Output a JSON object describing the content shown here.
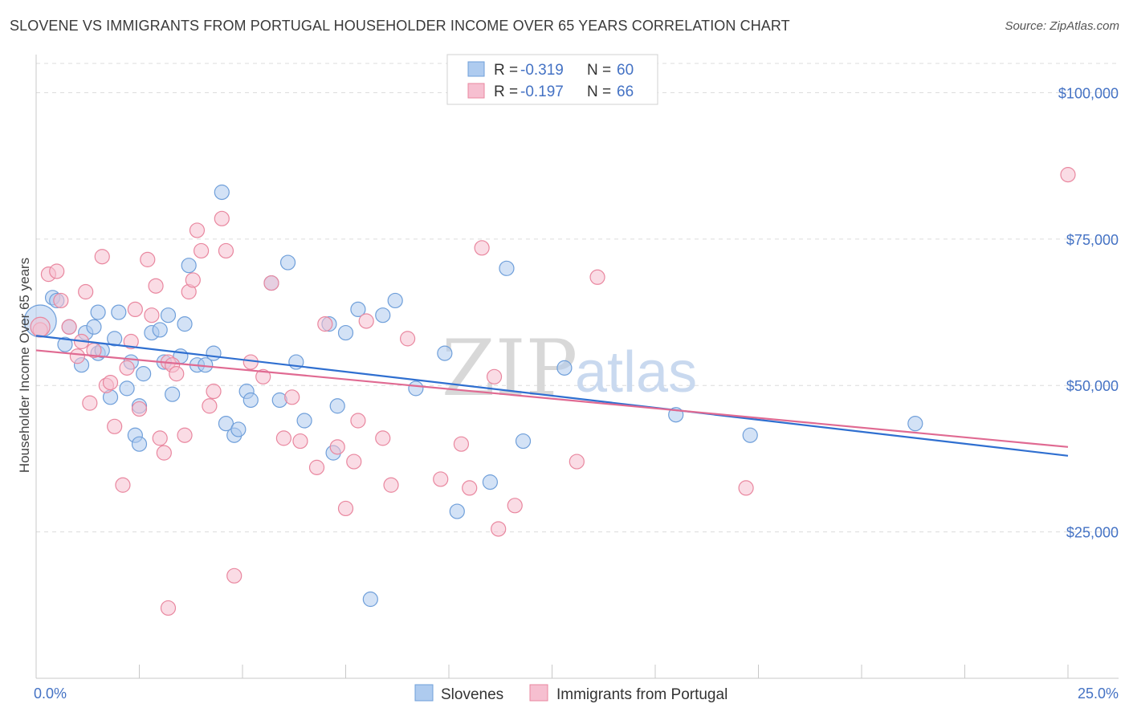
{
  "title": "SLOVENE VS IMMIGRANTS FROM PORTUGAL HOUSEHOLDER INCOME OVER 65 YEARS CORRELATION CHART",
  "source": "Source: ZipAtlas.com",
  "watermark": {
    "zip": "ZIP",
    "atlas": "atlas"
  },
  "legend": {
    "rows": [
      {
        "r_label": "R =",
        "r_value": "-0.319",
        "n_label": "N =",
        "n_value": "60"
      },
      {
        "r_label": "R =",
        "r_value": "-0.197",
        "n_label": "N =",
        "n_value": "66"
      }
    ]
  },
  "colors": {
    "blue_fill": "#aecbef",
    "blue_stroke": "#6f9fda",
    "blue_line": "#2f6fd0",
    "pink_fill": "#f6bfd0",
    "pink_stroke": "#e9879f",
    "pink_line": "#e06a92",
    "tick_text": "#4472c4",
    "grid": "#dcdcdc"
  },
  "chart_data": {
    "type": "scatter",
    "title": "SLOVENE VS IMMIGRANTS FROM PORTUGAL HOUSEHOLDER INCOME OVER 65 YEARS CORRELATION CHART",
    "xlabel": "",
    "ylabel": "Householder Income Over 65 years",
    "xlim": [
      0,
      25
    ],
    "ylim": [
      0,
      105000
    ],
    "x_tick_labels": [
      "0.0%",
      "25.0%"
    ],
    "y_ticks": [
      25000,
      50000,
      75000,
      100000
    ],
    "y_tick_labels": [
      "$25,000",
      "$50,000",
      "$75,000",
      "$100,000"
    ],
    "grid": "horizontal dashed",
    "legend_position": "top-center",
    "series": [
      {
        "name": "Slovenes",
        "color": "#aecbef",
        "trend": {
          "x": [
            0,
            25
          ],
          "y": [
            58500,
            38000
          ]
        },
        "points": [
          [
            0.1,
            61000
          ],
          [
            0.4,
            65000
          ],
          [
            0.5,
            64500
          ],
          [
            0.7,
            57000
          ],
          [
            0.8,
            60000
          ],
          [
            1.1,
            53500
          ],
          [
            1.2,
            59000
          ],
          [
            1.5,
            55500
          ],
          [
            1.6,
            56000
          ],
          [
            1.4,
            60000
          ],
          [
            1.5,
            62500
          ],
          [
            1.8,
            48000
          ],
          [
            1.9,
            58000
          ],
          [
            2.0,
            62500
          ],
          [
            2.2,
            49500
          ],
          [
            2.3,
            54000
          ],
          [
            2.4,
            41500
          ],
          [
            2.5,
            46500
          ],
          [
            2.6,
            52000
          ],
          [
            2.8,
            59000
          ],
          [
            3.0,
            59500
          ],
          [
            3.1,
            54000
          ],
          [
            3.2,
            62000
          ],
          [
            3.3,
            48500
          ],
          [
            3.5,
            55000
          ],
          [
            3.6,
            60500
          ],
          [
            3.7,
            70500
          ],
          [
            3.9,
            53500
          ],
          [
            4.1,
            53500
          ],
          [
            4.3,
            55500
          ],
          [
            4.5,
            83000
          ],
          [
            4.6,
            43500
          ],
          [
            4.8,
            41500
          ],
          [
            4.9,
            42500
          ],
          [
            5.1,
            49000
          ],
          [
            5.2,
            47500
          ],
          [
            5.7,
            67500
          ],
          [
            5.9,
            47500
          ],
          [
            6.1,
            71000
          ],
          [
            6.3,
            54000
          ],
          [
            6.5,
            44000
          ],
          [
            7.1,
            60500
          ],
          [
            7.2,
            38500
          ],
          [
            7.3,
            46500
          ],
          [
            7.5,
            59000
          ],
          [
            7.8,
            63000
          ],
          [
            8.1,
            13500
          ],
          [
            8.4,
            62000
          ],
          [
            8.7,
            64500
          ],
          [
            9.2,
            49500
          ],
          [
            9.9,
            55500
          ],
          [
            10.2,
            28500
          ],
          [
            11.0,
            33500
          ],
          [
            11.4,
            70000
          ],
          [
            11.8,
            40500
          ],
          [
            12.8,
            53000
          ],
          [
            15.5,
            45000
          ],
          [
            17.3,
            41500
          ],
          [
            21.3,
            43500
          ],
          [
            2.5,
            40000
          ]
        ]
      },
      {
        "name": "Immigrants from Portugal",
        "color": "#f6bfd0",
        "trend": {
          "x": [
            0,
            25
          ],
          "y": [
            56000,
            39500
          ]
        },
        "points": [
          [
            0.1,
            59500
          ],
          [
            0.3,
            69000
          ],
          [
            0.5,
            69500
          ],
          [
            0.6,
            64500
          ],
          [
            0.8,
            60000
          ],
          [
            1.0,
            55000
          ],
          [
            1.1,
            57500
          ],
          [
            1.2,
            66000
          ],
          [
            1.3,
            47000
          ],
          [
            1.4,
            56000
          ],
          [
            1.6,
            72000
          ],
          [
            1.7,
            50000
          ],
          [
            1.8,
            50500
          ],
          [
            1.9,
            43000
          ],
          [
            2.1,
            33000
          ],
          [
            2.2,
            53000
          ],
          [
            2.3,
            57500
          ],
          [
            2.4,
            63000
          ],
          [
            2.5,
            46000
          ],
          [
            2.7,
            71500
          ],
          [
            2.8,
            62000
          ],
          [
            2.9,
            67000
          ],
          [
            3.0,
            41000
          ],
          [
            3.1,
            38500
          ],
          [
            3.2,
            54000
          ],
          [
            3.3,
            53500
          ],
          [
            3.4,
            52000
          ],
          [
            3.6,
            41500
          ],
          [
            3.7,
            66000
          ],
          [
            3.8,
            68000
          ],
          [
            3.9,
            76500
          ],
          [
            4.0,
            73000
          ],
          [
            4.2,
            46500
          ],
          [
            4.3,
            49000
          ],
          [
            4.5,
            78500
          ],
          [
            4.6,
            73000
          ],
          [
            4.8,
            17500
          ],
          [
            5.2,
            54000
          ],
          [
            5.5,
            51500
          ],
          [
            5.7,
            67500
          ],
          [
            6.0,
            41000
          ],
          [
            6.2,
            48000
          ],
          [
            6.4,
            40500
          ],
          [
            6.8,
            36000
          ],
          [
            7.0,
            60500
          ],
          [
            7.3,
            39500
          ],
          [
            7.5,
            29000
          ],
          [
            7.7,
            37000
          ],
          [
            7.8,
            44000
          ],
          [
            8.0,
            61000
          ],
          [
            8.4,
            41000
          ],
          [
            8.6,
            33000
          ],
          [
            9.0,
            58000
          ],
          [
            9.8,
            34000
          ],
          [
            10.3,
            40000
          ],
          [
            10.5,
            32500
          ],
          [
            10.8,
            73500
          ],
          [
            11.1,
            51500
          ],
          [
            11.2,
            25500
          ],
          [
            11.6,
            29500
          ],
          [
            13.1,
            37000
          ],
          [
            13.6,
            68500
          ],
          [
            17.2,
            32500
          ],
          [
            25.0,
            86000
          ],
          [
            3.2,
            12000
          ],
          [
            0.1,
            60000
          ]
        ]
      }
    ]
  },
  "axis": {
    "ylabel": "Householder Income Over 65 years"
  },
  "bottom_legend": [
    "Slovenes",
    "Immigrants from Portugal"
  ]
}
